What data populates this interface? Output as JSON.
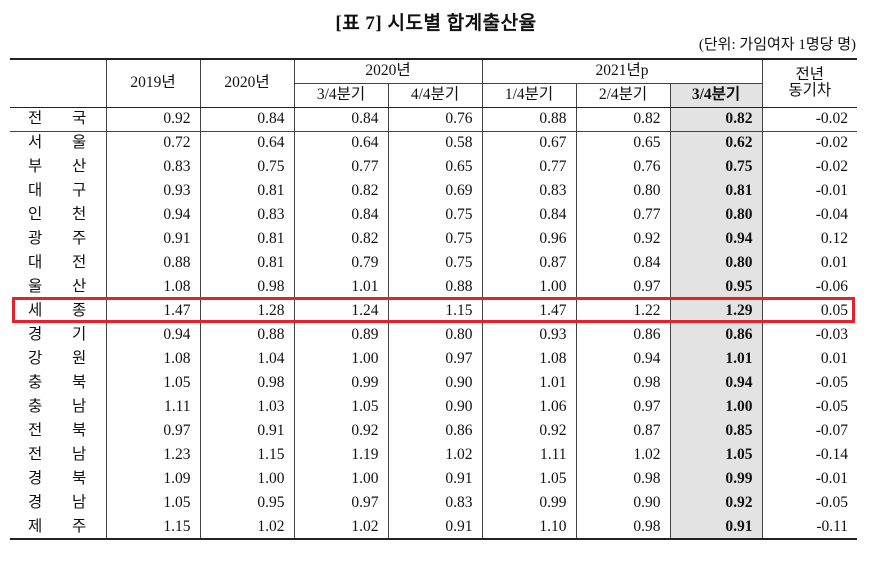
{
  "title": "[표 7] 시도별 합계출산율",
  "unit": "(단위: 가임여자 1명당 명)",
  "headers": {
    "y2019": "2019년",
    "y2020": "2020년",
    "group2020": "2020년",
    "group2021": "2021년p",
    "q3_2020": "3/4분기",
    "q4_2020": "4/4분기",
    "q1_2021": "1/4분기",
    "q2_2021": "2/4분기",
    "q3_2021": "3/4분기",
    "yoy_line1": "전년",
    "yoy_line2": "동기차"
  },
  "rows": [
    {
      "r1": "전",
      "r2": "국",
      "v": [
        "0.92",
        "0.84",
        "0.84",
        "0.76",
        "0.88",
        "0.82",
        "0.82",
        "-0.02"
      ]
    },
    {
      "r1": "서",
      "r2": "울",
      "v": [
        "0.72",
        "0.64",
        "0.64",
        "0.58",
        "0.67",
        "0.65",
        "0.62",
        "-0.02"
      ]
    },
    {
      "r1": "부",
      "r2": "산",
      "v": [
        "0.83",
        "0.75",
        "0.77",
        "0.65",
        "0.77",
        "0.76",
        "0.75",
        "-0.02"
      ]
    },
    {
      "r1": "대",
      "r2": "구",
      "v": [
        "0.93",
        "0.81",
        "0.82",
        "0.69",
        "0.83",
        "0.80",
        "0.81",
        "-0.01"
      ]
    },
    {
      "r1": "인",
      "r2": "천",
      "v": [
        "0.94",
        "0.83",
        "0.84",
        "0.75",
        "0.84",
        "0.77",
        "0.80",
        "-0.04"
      ]
    },
    {
      "r1": "광",
      "r2": "주",
      "v": [
        "0.91",
        "0.81",
        "0.82",
        "0.75",
        "0.96",
        "0.92",
        "0.94",
        "0.12"
      ]
    },
    {
      "r1": "대",
      "r2": "전",
      "v": [
        "0.88",
        "0.81",
        "0.79",
        "0.75",
        "0.87",
        "0.84",
        "0.80",
        "0.01"
      ]
    },
    {
      "r1": "울",
      "r2": "산",
      "v": [
        "1.08",
        "0.98",
        "1.01",
        "0.88",
        "1.00",
        "0.97",
        "0.95",
        "-0.06"
      ]
    },
    {
      "r1": "세",
      "r2": "종",
      "v": [
        "1.47",
        "1.28",
        "1.24",
        "1.15",
        "1.47",
        "1.22",
        "1.29",
        "0.05"
      ]
    },
    {
      "r1": "경",
      "r2": "기",
      "v": [
        "0.94",
        "0.88",
        "0.89",
        "0.80",
        "0.93",
        "0.86",
        "0.86",
        "-0.03"
      ]
    },
    {
      "r1": "강",
      "r2": "원",
      "v": [
        "1.08",
        "1.04",
        "1.00",
        "0.97",
        "1.08",
        "0.94",
        "1.01",
        "0.01"
      ]
    },
    {
      "r1": "충",
      "r2": "북",
      "v": [
        "1.05",
        "0.98",
        "0.99",
        "0.90",
        "1.01",
        "0.98",
        "0.94",
        "-0.05"
      ]
    },
    {
      "r1": "충",
      "r2": "남",
      "v": [
        "1.11",
        "1.03",
        "1.05",
        "0.90",
        "1.06",
        "0.97",
        "1.00",
        "-0.05"
      ]
    },
    {
      "r1": "전",
      "r2": "북",
      "v": [
        "0.97",
        "0.91",
        "0.92",
        "0.86",
        "0.92",
        "0.87",
        "0.85",
        "-0.07"
      ]
    },
    {
      "r1": "전",
      "r2": "남",
      "v": [
        "1.23",
        "1.15",
        "1.19",
        "1.02",
        "1.11",
        "1.02",
        "1.05",
        "-0.14"
      ]
    },
    {
      "r1": "경",
      "r2": "북",
      "v": [
        "1.09",
        "1.00",
        "1.00",
        "0.91",
        "1.05",
        "0.98",
        "0.99",
        "-0.01"
      ]
    },
    {
      "r1": "경",
      "r2": "남",
      "v": [
        "1.05",
        "0.95",
        "0.97",
        "0.83",
        "0.99",
        "0.90",
        "0.92",
        "-0.05"
      ]
    },
    {
      "r1": "제",
      "r2": "주",
      "v": [
        "1.15",
        "1.02",
        "1.02",
        "0.91",
        "1.10",
        "0.98",
        "0.91",
        "-0.11"
      ]
    }
  ],
  "highlight_row": "세종",
  "highlight_color": "#e5222b",
  "shaded_column_color": "#e3e3e3"
}
